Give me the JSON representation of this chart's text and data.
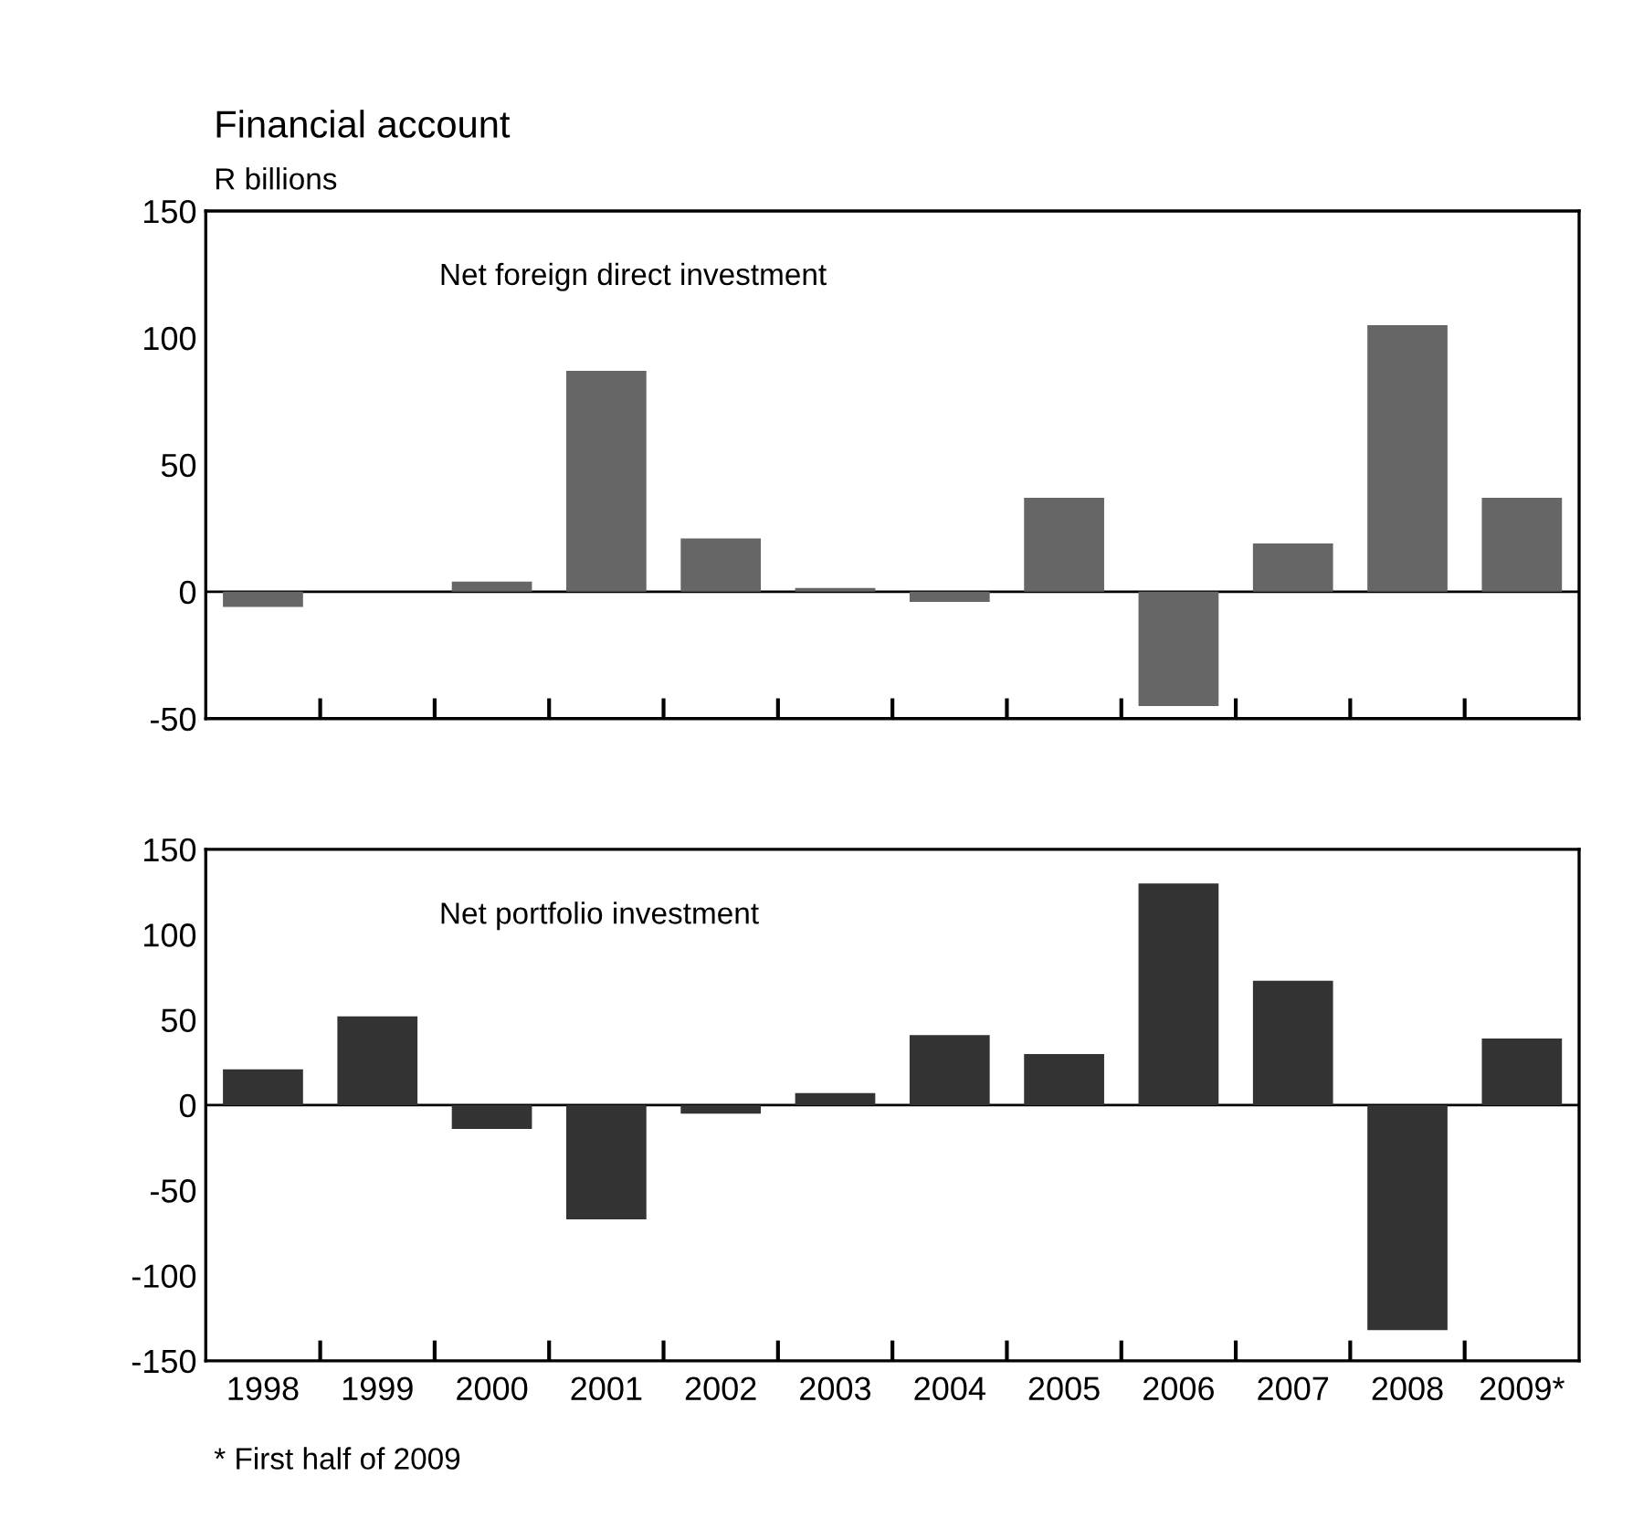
{
  "chart_data": [
    {
      "type": "bar",
      "title": "Financial account",
      "ylabel": "R billions",
      "categories": [
        null,
        null,
        null,
        null,
        null,
        null,
        null,
        null,
        null,
        null,
        null,
        null
      ],
      "ref_lines": [
        {
          "axis": "y",
          "value": 0
        }
      ],
      "values": [
        -6,
        0,
        4,
        87,
        21,
        1.5,
        -4,
        37,
        -45,
        19,
        105,
        37
      ],
      "color": "#666666",
      "ylim": [
        -50,
        150
      ],
      "yticks": [
        -50,
        0,
        50,
        100,
        150
      ],
      "tick_labels": "y",
      "annotations": [
        "Net foreign direct investment"
      ]
    },
    {
      "type": "bar",
      "categories": [
        "1998",
        "1999",
        "2000",
        "2001",
        "2002",
        "2003",
        "2004",
        "2005",
        "2006",
        "2007",
        "2008",
        "2009*"
      ],
      "values": [
        21,
        52,
        -14,
        -67,
        -5,
        7,
        41,
        30,
        130,
        73,
        -132,
        39
      ],
      "color": "#333333",
      "ref_lines": [
        {
          "axis": "y",
          "value": 0
        }
      ],
      "ylim": [
        -150,
        150
      ],
      "yticks": [
        -150,
        -100,
        -50,
        0,
        50,
        100,
        150
      ],
      "annotations": [
        "Net portfolio investment",
        "* First half of 2009"
      ]
    }
  ]
}
